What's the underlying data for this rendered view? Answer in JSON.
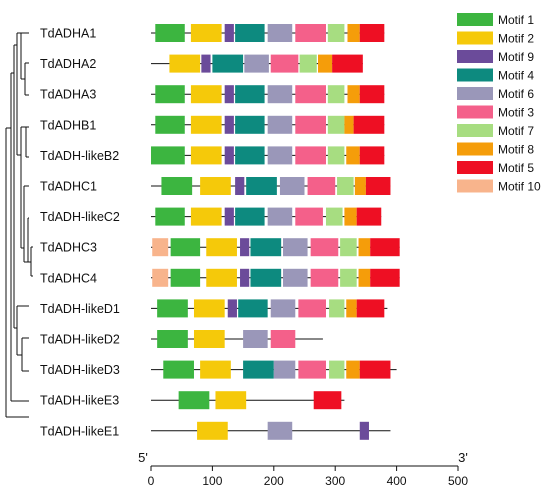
{
  "figure": {
    "genes": [
      {
        "name": "TdADHA1",
        "length": 380,
        "motifs": [
          [
            7,
            55,
            1
          ],
          [
            65,
            115,
            2
          ],
          [
            120,
            135,
            9
          ],
          [
            137,
            185,
            4
          ],
          [
            190,
            230,
            6
          ],
          [
            235,
            285,
            3
          ],
          [
            288,
            315,
            7
          ],
          [
            320,
            340,
            8
          ],
          [
            340,
            380,
            5
          ]
        ]
      },
      {
        "name": "TdADHA2",
        "length": 345,
        "motifs": [
          [
            30,
            80,
            2
          ],
          [
            82,
            97,
            9
          ],
          [
            100,
            150,
            4
          ],
          [
            152,
            192,
            6
          ],
          [
            195,
            240,
            3
          ],
          [
            242,
            270,
            7
          ],
          [
            272,
            295,
            8
          ],
          [
            295,
            345,
            5
          ]
        ]
      },
      {
        "name": "TdADHA3",
        "length": 380,
        "motifs": [
          [
            7,
            55,
            1
          ],
          [
            65,
            115,
            2
          ],
          [
            120,
            135,
            9
          ],
          [
            137,
            185,
            4
          ],
          [
            190,
            230,
            6
          ],
          [
            235,
            285,
            3
          ],
          [
            288,
            315,
            7
          ],
          [
            320,
            340,
            8
          ],
          [
            340,
            380,
            5
          ]
        ]
      },
      {
        "name": "TdADHB1",
        "length": 380,
        "motifs": [
          [
            7,
            55,
            1
          ],
          [
            65,
            115,
            2
          ],
          [
            120,
            135,
            9
          ],
          [
            137,
            185,
            4
          ],
          [
            190,
            230,
            6
          ],
          [
            235,
            285,
            3
          ],
          [
            288,
            315,
            7
          ],
          [
            315,
            330,
            8
          ],
          [
            330,
            380,
            5
          ]
        ]
      },
      {
        "name": "TdADH-likeB2",
        "length": 380,
        "motifs": [
          [
            0,
            55,
            1
          ],
          [
            65,
            115,
            2
          ],
          [
            120,
            135,
            9
          ],
          [
            137,
            185,
            4
          ],
          [
            190,
            230,
            6
          ],
          [
            235,
            285,
            3
          ],
          [
            288,
            315,
            7
          ],
          [
            318,
            340,
            8
          ],
          [
            340,
            380,
            5
          ]
        ]
      },
      {
        "name": "TdADHC1",
        "length": 390,
        "motifs": [
          [
            17,
            67,
            1
          ],
          [
            80,
            130,
            2
          ],
          [
            137,
            152,
            9
          ],
          [
            155,
            205,
            4
          ],
          [
            210,
            250,
            6
          ],
          [
            255,
            300,
            3
          ],
          [
            303,
            330,
            7
          ],
          [
            332,
            350,
            8
          ],
          [
            350,
            390,
            5
          ]
        ]
      },
      {
        "name": "TdADH-likeC2",
        "length": 375,
        "motifs": [
          [
            7,
            55,
            1
          ],
          [
            65,
            115,
            2
          ],
          [
            120,
            135,
            9
          ],
          [
            137,
            185,
            4
          ],
          [
            190,
            230,
            6
          ],
          [
            235,
            280,
            3
          ],
          [
            285,
            312,
            7
          ],
          [
            315,
            335,
            8
          ],
          [
            335,
            375,
            5
          ]
        ]
      },
      {
        "name": "TdADHC3",
        "length": 405,
        "motifs": [
          [
            2,
            28,
            10
          ],
          [
            32,
            80,
            1
          ],
          [
            90,
            140,
            2
          ],
          [
            145,
            160,
            9
          ],
          [
            162,
            212,
            4
          ],
          [
            215,
            255,
            6
          ],
          [
            260,
            305,
            3
          ],
          [
            308,
            335,
            7
          ],
          [
            338,
            357,
            8
          ],
          [
            357,
            405,
            5
          ]
        ]
      },
      {
        "name": "TdADHC4",
        "length": 405,
        "motifs": [
          [
            2,
            28,
            10
          ],
          [
            32,
            80,
            1
          ],
          [
            90,
            140,
            2
          ],
          [
            145,
            160,
            9
          ],
          [
            162,
            212,
            4
          ],
          [
            215,
            255,
            6
          ],
          [
            260,
            305,
            3
          ],
          [
            308,
            335,
            7
          ],
          [
            338,
            357,
            8
          ],
          [
            357,
            405,
            5
          ]
        ]
      },
      {
        "name": "TdADH-likeD1",
        "length": 385,
        "motifs": [
          [
            10,
            60,
            1
          ],
          [
            70,
            120,
            2
          ],
          [
            125,
            140,
            9
          ],
          [
            142,
            190,
            4
          ],
          [
            195,
            235,
            6
          ],
          [
            240,
            285,
            3
          ],
          [
            290,
            315,
            7
          ],
          [
            318,
            335,
            8
          ],
          [
            335,
            380,
            5
          ]
        ]
      },
      {
        "name": "TdADH-likeD2",
        "length": 280,
        "motifs": [
          [
            10,
            60,
            1
          ],
          [
            70,
            120,
            2
          ],
          [
            150,
            190,
            6
          ],
          [
            195,
            235,
            3
          ]
        ]
      },
      {
        "name": "TdADH-likeD3",
        "length": 400,
        "motifs": [
          [
            20,
            70,
            1
          ],
          [
            80,
            130,
            2
          ],
          [
            150,
            200,
            4
          ],
          [
            200,
            235,
            6
          ],
          [
            240,
            285,
            3
          ],
          [
            290,
            315,
            7
          ],
          [
            318,
            340,
            8
          ],
          [
            340,
            390,
            5
          ]
        ]
      },
      {
        "name": "TdADH-likeE3",
        "length": 315,
        "motifs": [
          [
            45,
            95,
            1
          ],
          [
            105,
            155,
            2
          ],
          [
            265,
            310,
            5
          ]
        ]
      },
      {
        "name": "TdADH-likeE1",
        "length": 390,
        "motifs": [
          [
            75,
            125,
            2
          ],
          [
            190,
            230,
            6
          ],
          [
            340,
            355,
            9
          ]
        ]
      }
    ],
    "legend": [
      {
        "motif": 1,
        "label": "Motif 1",
        "color": "#3cb540"
      },
      {
        "motif": 2,
        "label": "Motif 2",
        "color": "#f5c90a"
      },
      {
        "motif": 9,
        "label": "Motif 9",
        "color": "#6b4b9a"
      },
      {
        "motif": 4,
        "label": "Motif 4",
        "color": "#0d8a7f"
      },
      {
        "motif": 6,
        "label": "Motif 6",
        "color": "#9a97b9"
      },
      {
        "motif": 3,
        "label": "Motif 3",
        "color": "#f4608a"
      },
      {
        "motif": 7,
        "label": "Motif 7",
        "color": "#a7dd81"
      },
      {
        "motif": 8,
        "label": "Motif 8",
        "color": "#f59d0a"
      },
      {
        "motif": 5,
        "label": "Motif 5",
        "color": "#ee0f23"
      },
      {
        "motif": 10,
        "label": "Motif 10",
        "color": "#f8b48c"
      }
    ],
    "axis": {
      "min": 0,
      "max": 500,
      "ticks": [
        0,
        100,
        200,
        300,
        400,
        500
      ],
      "left_label": "5'",
      "right_label": "3'"
    }
  }
}
